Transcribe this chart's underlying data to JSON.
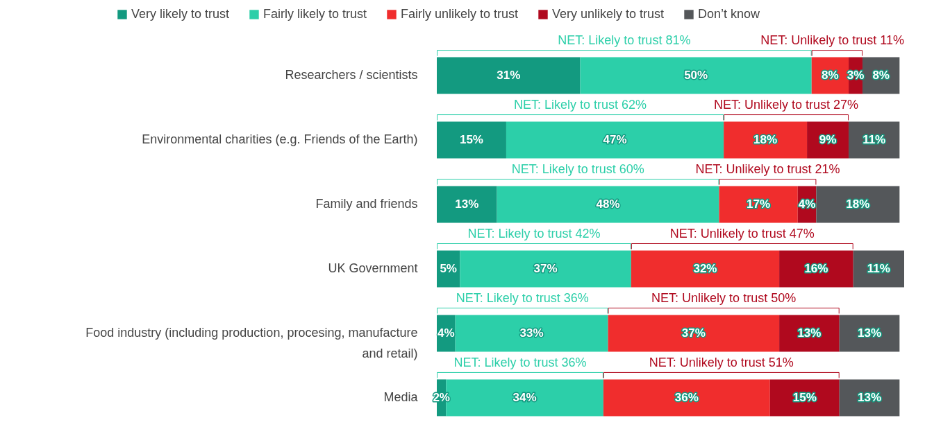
{
  "chart_data": {
    "type": "bar",
    "orientation": "horizontal",
    "stacked": true,
    "legend": "top",
    "tick_labels": "y",
    "xlim": [
      0,
      101
    ],
    "categories": [
      "Researchers / scientists",
      "Environmental charities (e.g. Friends of the Earth)",
      "Family and friends",
      "UK Government",
      "Food industry (including production, procesing, manufacture and retail)",
      "Media"
    ],
    "series": [
      {
        "name": "Very likely to trust",
        "color": "#139a80",
        "values": [
          31,
          15,
          13,
          5,
          4,
          2
        ],
        "value_labels": [
          "31%",
          "15%",
          "13%",
          "5%",
          "4%",
          "2%"
        ]
      },
      {
        "name": "Fairly likely to trust",
        "color": "#2ccfa9",
        "values": [
          50,
          47,
          48,
          37,
          33,
          34
        ],
        "value_labels": [
          "50%",
          "47%",
          "48%",
          "37%",
          "33%",
          "34%"
        ]
      },
      {
        "name": "Fairly unlikely to trust",
        "color": "#f02d2d",
        "values": [
          8,
          18,
          17,
          32,
          37,
          36
        ],
        "value_labels": [
          "8%",
          "18%",
          "17%",
          "32%",
          "37%",
          "36%"
        ]
      },
      {
        "name": "Very unlikely to trust",
        "color": "#b0091e",
        "values": [
          3,
          9,
          4,
          16,
          13,
          15
        ],
        "value_labels": [
          "3%",
          "9%",
          "4%",
          "16%",
          "13%",
          "15%"
        ]
      },
      {
        "name": "Don’t know",
        "color": "#54575a",
        "values": [
          8,
          11,
          18,
          11,
          13,
          13
        ],
        "value_labels": [
          "8%",
          "11%",
          "18%",
          "11%",
          "13%",
          "13%"
        ]
      }
    ],
    "annotations": [
      "NET: Likely to trust 81%",
      "NET: Unlikely to trust 11%",
      "NET: Likely to trust 62%",
      "NET: Unlikely to trust 27%",
      "NET: Likely to trust 60%",
      "NET: Unlikely to trust 21%",
      "NET: Likely to trust 42%",
      "NET: Unlikely to trust 47%",
      "NET: Likely to trust 36%",
      "NET: Unlikely to trust 50%",
      "NET: Likely to trust 36%",
      "NET: Unlikely to trust 51%"
    ]
  }
}
